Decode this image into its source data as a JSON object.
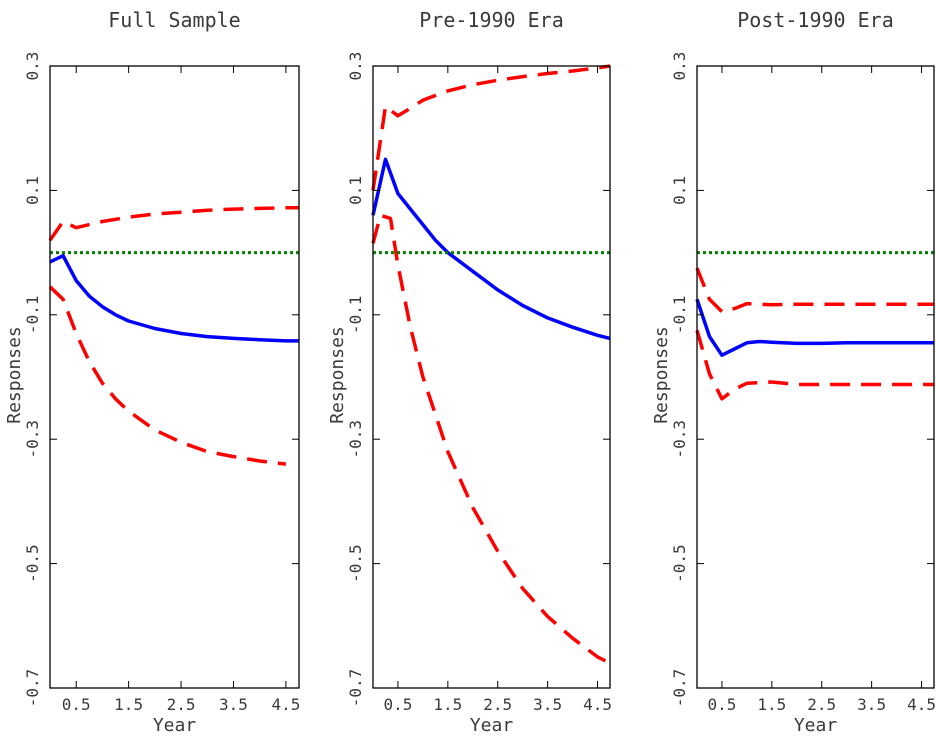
{
  "chart_data": [
    {
      "type": "line",
      "title": "Full Sample",
      "xlabel": "Year",
      "ylabel": "Responses",
      "xlim": [
        0,
        4.75
      ],
      "ylim": [
        -0.7,
        0.3
      ],
      "x_ticks": [
        "0.5",
        "1.5",
        "2.5",
        "3.5",
        "4.5"
      ],
      "y_ticks": [
        "0.3",
        "0.1",
        "-0.1",
        "-0.3",
        "-0.5",
        "-0.7"
      ],
      "series": [
        {
          "style": "median",
          "color": "#0000ff",
          "x": [
            0,
            0.25,
            0.5,
            0.75,
            1.0,
            1.25,
            1.5,
            2.0,
            2.5,
            3.0,
            3.5,
            4.0,
            4.5,
            4.75
          ],
          "y": [
            -0.015,
            -0.005,
            -0.045,
            -0.07,
            -0.087,
            -0.1,
            -0.11,
            -0.122,
            -0.13,
            -0.135,
            -0.138,
            -0.14,
            -0.142,
            -0.142
          ]
        },
        {
          "style": "upper band",
          "color": "#ff0000",
          "x": [
            0,
            0.25,
            0.5,
            0.75,
            1.0,
            1.5,
            2.0,
            2.5,
            3.0,
            3.5,
            4.0,
            4.5,
            4.75
          ],
          "y": [
            0.02,
            0.05,
            0.04,
            0.045,
            0.05,
            0.057,
            0.062,
            0.065,
            0.068,
            0.07,
            0.071,
            0.072,
            0.072
          ]
        },
        {
          "style": "lower band",
          "color": "#ff0000",
          "x": [
            0,
            0.25,
            0.5,
            0.75,
            1.0,
            1.25,
            1.5,
            2.0,
            2.5,
            3.0,
            3.5,
            4.0,
            4.5
          ],
          "y": [
            -0.055,
            -0.075,
            -0.13,
            -0.175,
            -0.21,
            -0.235,
            -0.255,
            -0.285,
            -0.305,
            -0.32,
            -0.328,
            -0.335,
            -0.34
          ]
        },
        {
          "style": "zero line",
          "color": "#008000",
          "x": [
            0,
            4.75
          ],
          "y": [
            0,
            0
          ]
        }
      ]
    },
    {
      "type": "line",
      "title": "Pre-1990 Era",
      "xlabel": "Year",
      "ylabel": "Responses",
      "xlim": [
        0,
        4.75
      ],
      "ylim": [
        -0.7,
        0.3
      ],
      "x_ticks": [
        "0.5",
        "1.5",
        "2.5",
        "3.5",
        "4.5"
      ],
      "y_ticks": [
        "0.3",
        "0.1",
        "-0.1",
        "-0.3",
        "-0.5",
        "-0.7"
      ],
      "series": [
        {
          "style": "median",
          "color": "#0000ff",
          "x": [
            0,
            0.25,
            0.5,
            0.75,
            1.0,
            1.25,
            1.5,
            2.0,
            2.5,
            3.0,
            3.5,
            4.0,
            4.5,
            4.75
          ],
          "y": [
            0.06,
            0.15,
            0.095,
            0.07,
            0.045,
            0.02,
            0.0,
            -0.03,
            -0.06,
            -0.085,
            -0.105,
            -0.12,
            -0.133,
            -0.138
          ]
        },
        {
          "style": "upper band",
          "color": "#ff0000",
          "x": [
            0,
            0.25,
            0.5,
            0.75,
            1.0,
            1.5,
            2.0,
            2.5,
            3.0,
            3.5,
            4.0,
            4.5,
            4.75
          ],
          "y": [
            0.1,
            0.235,
            0.22,
            0.232,
            0.245,
            0.26,
            0.27,
            0.277,
            0.283,
            0.288,
            0.292,
            0.297,
            0.3
          ]
        },
        {
          "style": "lower band",
          "color": "#ff0000",
          "x": [
            0,
            0.15,
            0.35,
            0.5,
            0.75,
            1.0,
            1.5,
            2.0,
            2.5,
            3.0,
            3.5,
            4.0,
            4.5,
            4.75
          ],
          "y": [
            0.015,
            0.06,
            0.055,
            -0.02,
            -0.12,
            -0.2,
            -0.32,
            -0.41,
            -0.48,
            -0.54,
            -0.585,
            -0.62,
            -0.65,
            -0.66
          ]
        },
        {
          "style": "zero line",
          "color": "#008000",
          "x": [
            0,
            4.75
          ],
          "y": [
            0,
            0
          ]
        }
      ]
    },
    {
      "type": "line",
      "title": "Post-1990 Era",
      "xlabel": "Year",
      "ylabel": "Responses",
      "xlim": [
        0,
        4.75
      ],
      "ylim": [
        -0.7,
        0.3
      ],
      "x_ticks": [
        "0.5",
        "1.5",
        "2.5",
        "3.5",
        "4.5"
      ],
      "y_ticks": [
        "0.3",
        "0.1",
        "-0.1",
        "-0.3",
        "-0.5",
        "-0.7"
      ],
      "series": [
        {
          "style": "median",
          "color": "#0000ff",
          "x": [
            0,
            0.25,
            0.5,
            0.75,
            1.0,
            1.25,
            1.5,
            2.0,
            2.5,
            3.0,
            3.5,
            4.0,
            4.5,
            4.75
          ],
          "y": [
            -0.075,
            -0.135,
            -0.165,
            -0.155,
            -0.145,
            -0.143,
            -0.144,
            -0.146,
            -0.146,
            -0.145,
            -0.145,
            -0.145,
            -0.145,
            -0.145
          ]
        },
        {
          "style": "upper band",
          "color": "#ff0000",
          "x": [
            0,
            0.25,
            0.5,
            0.75,
            1.0,
            1.5,
            2.0,
            2.5,
            3.0,
            3.5,
            4.0,
            4.5,
            4.75
          ],
          "y": [
            -0.025,
            -0.075,
            -0.095,
            -0.09,
            -0.082,
            -0.084,
            -0.083,
            -0.083,
            -0.083,
            -0.083,
            -0.083,
            -0.083,
            -0.083
          ]
        },
        {
          "style": "lower band",
          "color": "#ff0000",
          "x": [
            0,
            0.25,
            0.5,
            0.75,
            1.0,
            1.5,
            2.0,
            2.5,
            3.0,
            3.5,
            4.0,
            4.5,
            4.75
          ],
          "y": [
            -0.125,
            -0.195,
            -0.235,
            -0.22,
            -0.21,
            -0.208,
            -0.212,
            -0.212,
            -0.212,
            -0.212,
            -0.212,
            -0.212,
            -0.212
          ]
        },
        {
          "style": "zero line",
          "color": "#008000",
          "x": [
            0,
            4.75
          ],
          "y": [
            0,
            0
          ]
        }
      ]
    }
  ]
}
